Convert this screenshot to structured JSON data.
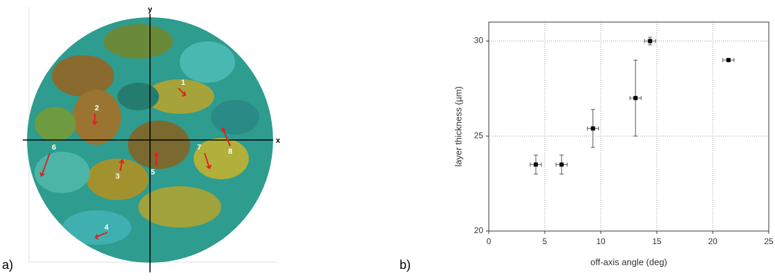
{
  "panel_labels": [
    "a)",
    "b)"
  ],
  "panel_a": {
    "axis_x": "x",
    "axis_y": "y",
    "markers": [
      "1",
      "2",
      "3",
      "4",
      "5",
      "6",
      "7",
      "8"
    ]
  },
  "chart_data": {
    "type": "scatter",
    "x_label": "off-axis angle (deg)",
    "y_label": "layer thickness (µm)",
    "series": [
      {
        "color": "#000000",
        "x": [
          4.2,
          6.5,
          9.3,
          13.1,
          14.4,
          21.4
        ],
        "values": [
          23.5,
          23.5,
          25.4,
          27.0,
          30.0,
          29.0
        ],
        "x_errors": [
          0.5,
          0.5,
          0.5,
          0.5,
          0.5,
          0.5
        ],
        "y_errors": [
          0.5,
          0.5,
          1.0,
          2.0,
          0.2,
          0.05
        ]
      }
    ],
    "xlim": [
      0,
      25
    ],
    "ylim": [
      20,
      31
    ],
    "xticks": [
      0,
      5,
      10,
      15,
      20,
      25
    ],
    "yticks": [
      20,
      25,
      30
    ],
    "grid": true
  }
}
